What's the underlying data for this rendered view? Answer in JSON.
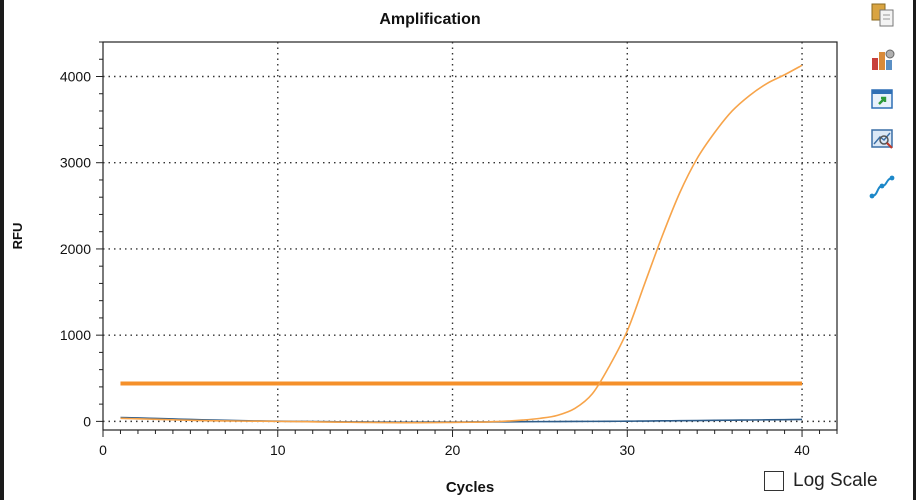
{
  "chart_data": {
    "type": "line",
    "title": "Amplification",
    "xlabel": "Cycles",
    "ylabel": "RFU",
    "xlim": [
      0,
      42
    ],
    "ylim": [
      -100,
      4400
    ],
    "x_ticks": [
      0,
      10,
      20,
      30,
      40
    ],
    "y_ticks": [
      0,
      1000,
      2000,
      3000,
      4000
    ],
    "grid": true,
    "series": [
      {
        "color": "#f7a44a",
        "x": [
          1,
          2,
          3,
          4,
          5,
          6,
          7,
          8,
          9,
          10,
          11,
          12,
          13,
          14,
          15,
          16,
          17,
          18,
          19,
          20,
          21,
          22,
          23,
          24,
          25,
          26,
          27,
          28,
          29,
          30,
          31,
          32,
          33,
          34,
          35,
          36,
          37,
          38,
          39,
          40
        ],
        "values": [
          35,
          30,
          24,
          18,
          12,
          8,
          5,
          3,
          2,
          0,
          -2,
          -5,
          -8,
          -10,
          -12,
          -14,
          -15,
          -15,
          -14,
          -12,
          -10,
          -6,
          2,
          15,
          35,
          70,
          150,
          320,
          650,
          1050,
          1600,
          2150,
          2650,
          3050,
          3350,
          3600,
          3780,
          3920,
          4020,
          4130
        ]
      },
      {
        "color": "#2f5d8a",
        "x": [
          1,
          2,
          3,
          4,
          5,
          6,
          7,
          8,
          9,
          10,
          11,
          12,
          13,
          14,
          15,
          16,
          17,
          18,
          19,
          20,
          21,
          22,
          23,
          24,
          25,
          26,
          27,
          28,
          29,
          30,
          31,
          32,
          33,
          34,
          35,
          36,
          37,
          38,
          39,
          40
        ],
        "values": [
          45,
          40,
          34,
          28,
          22,
          17,
          12,
          8,
          5,
          2,
          0,
          -2,
          -4,
          -6,
          -7,
          -8,
          -9,
          -9,
          -8,
          -8,
          -7,
          -6,
          -5,
          -4,
          -3,
          -2,
          -1,
          0,
          1,
          2,
          4,
          6,
          8,
          10,
          12,
          14,
          16,
          18,
          20,
          22
        ]
      }
    ],
    "threshold": {
      "value": 440,
      "x_range": [
        1,
        40
      ],
      "color": "#f5902a"
    }
  },
  "controls": {
    "log_scale_label": "Log Scale",
    "log_scale_checked": false
  },
  "toolbar": {
    "icons": [
      "copy-icon",
      "chart-settings-icon",
      "export-icon",
      "zoom-icon",
      "curve-icon"
    ]
  }
}
